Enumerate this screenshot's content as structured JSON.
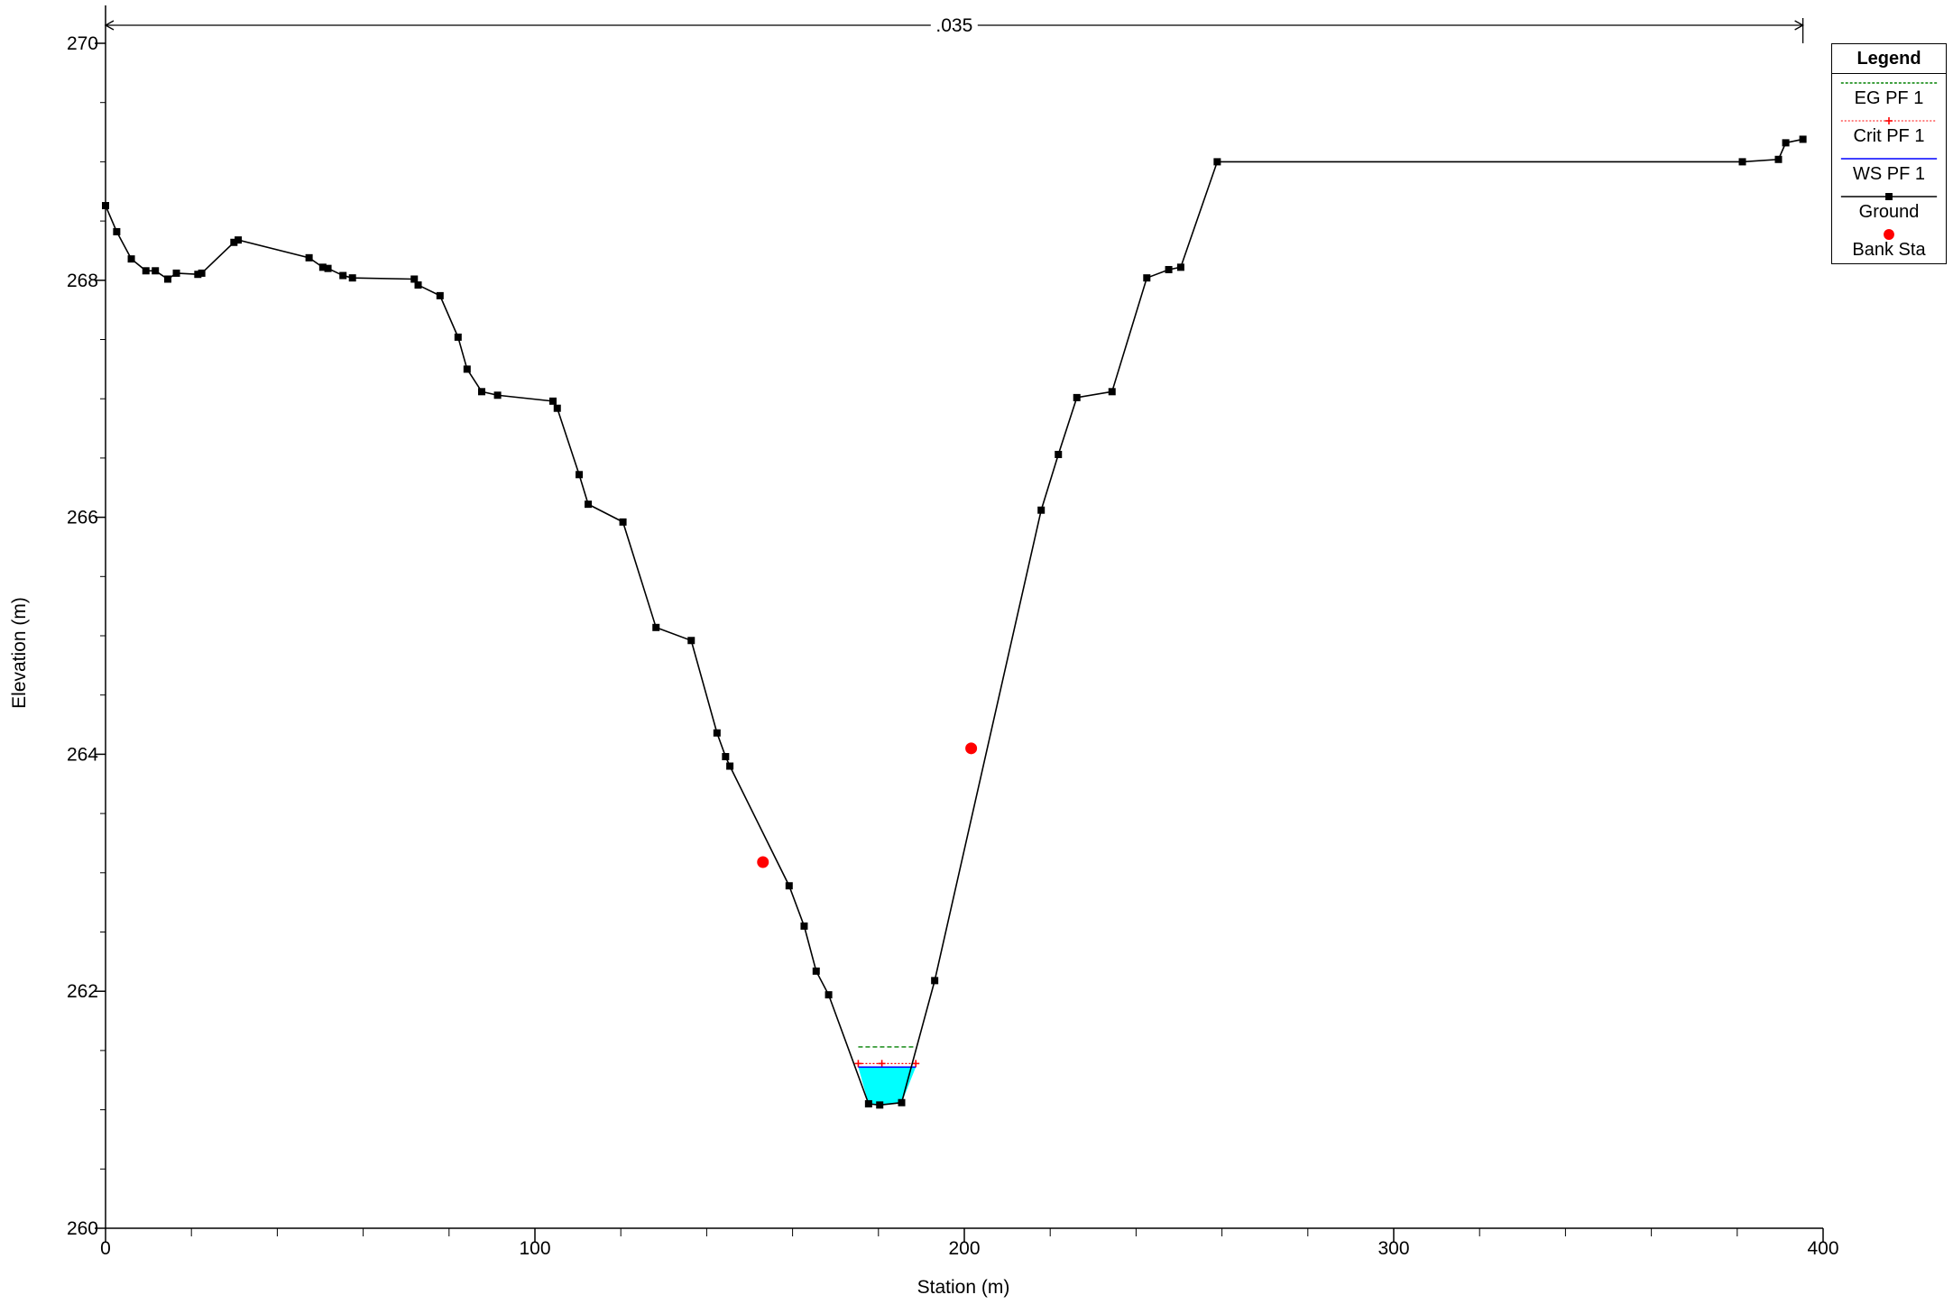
{
  "chart_data": {
    "type": "line",
    "title": "",
    "xlabel": "Station (m)",
    "ylabel": "Elevation (m)",
    "xlim": [
      0,
      400
    ],
    "ylim": [
      260,
      270
    ],
    "x_ticks": [
      "0",
      "100",
      "200",
      "300",
      "400"
    ],
    "y_ticks": [
      "260",
      "262",
      "264",
      "266",
      "268",
      "270"
    ],
    "grid": false,
    "legend_position": "top-right",
    "manning_n": ".035",
    "series": [
      {
        "name": "EG PF 1",
        "color": "#008000",
        "x": [
          175.3,
          188.7
        ],
        "y": [
          261.53,
          261.53
        ]
      },
      {
        "name": "Crit PF 1",
        "color": "#ff0000",
        "x": [
          175.3,
          180.8,
          188.7
        ],
        "y": [
          261.39,
          261.39,
          261.39
        ]
      },
      {
        "name": "WS PF 1",
        "color": "#0000ff",
        "x": [
          175.3,
          188.7
        ],
        "y": [
          261.36,
          261.36
        ]
      },
      {
        "name": "Ground",
        "color": "#000000",
        "x": [
          0,
          2.6,
          6,
          9.4,
          11.6,
          14.5,
          16.5,
          21.5,
          22.4,
          29.9,
          30.9,
          47.4,
          50.6,
          51.8,
          55.3,
          57.5,
          71.9,
          72.8,
          77.9,
          82.1,
          84.2,
          87.6,
          91.3,
          104.2,
          105.2,
          110.3,
          112.4,
          120.5,
          128.2,
          136.4,
          142.4,
          144.4,
          145.4,
          159.2,
          162.7,
          165.5,
          168.4,
          177.7,
          180.3,
          185.4,
          193.1,
          217.9,
          221.9,
          226.2,
          234.4,
          242.5,
          247.6,
          250.4,
          258.9,
          381.2,
          389.6,
          391.3,
          395.3
        ],
        "y": [
          268.63,
          268.41,
          268.18,
          268.08,
          268.08,
          268.01,
          268.06,
          268.05,
          268.06,
          268.32,
          268.34,
          268.19,
          268.11,
          268.1,
          268.04,
          268.02,
          268.01,
          267.96,
          267.87,
          267.52,
          267.25,
          267.06,
          267.03,
          266.98,
          266.92,
          266.36,
          266.11,
          265.96,
          265.07,
          264.96,
          264.18,
          263.98,
          263.9,
          262.89,
          262.55,
          262.17,
          261.97,
          261.05,
          261.04,
          261.06,
          262.09,
          266.06,
          266.53,
          267.01,
          267.06,
          268.02,
          268.09,
          268.11,
          269.0,
          269.0,
          269.02,
          269.16,
          269.19
        ]
      },
      {
        "name": "Bank Sta",
        "color": "#ff0000",
        "x": [
          153.1,
          201.6
        ],
        "y": [
          263.09,
          264.05
        ]
      }
    ],
    "water_fill_color": "#00ffff"
  },
  "legend": {
    "title": "Legend",
    "items": [
      {
        "key": "eg",
        "label": "EG PF 1"
      },
      {
        "key": "crit",
        "label": "Crit PF 1"
      },
      {
        "key": "ws",
        "label": "WS PF 1"
      },
      {
        "key": "ground",
        "label": "Ground"
      },
      {
        "key": "bank",
        "label": "Bank Sta"
      }
    ]
  }
}
